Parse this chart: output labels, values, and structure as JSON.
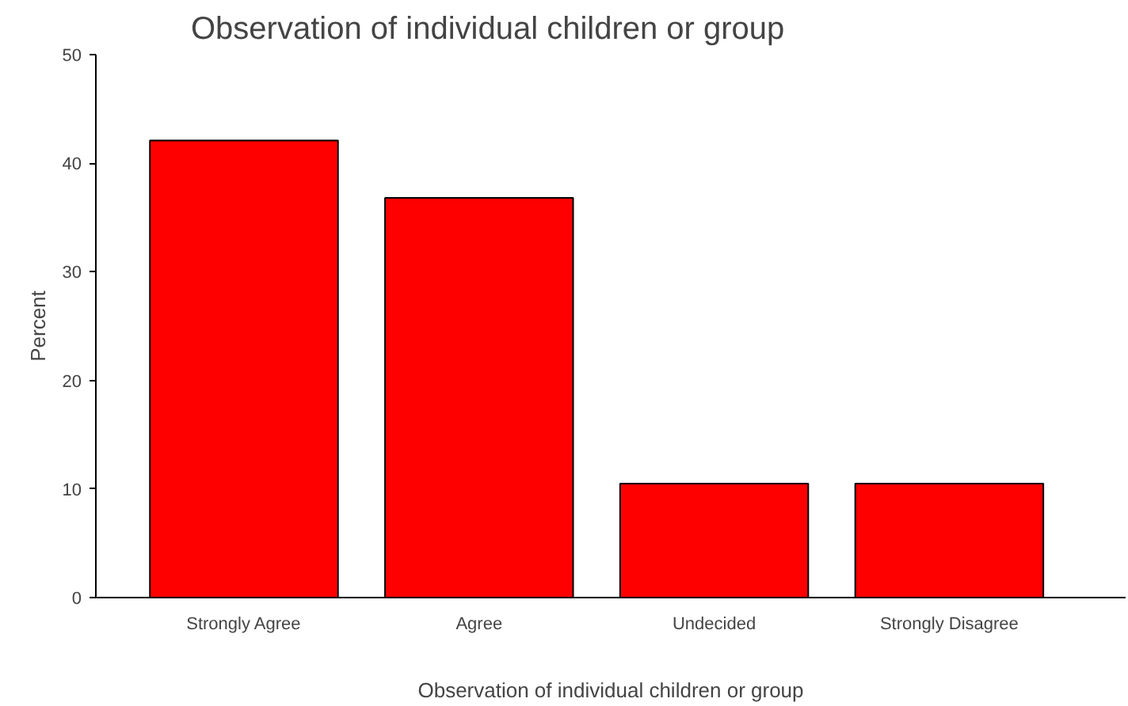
{
  "chart_data": {
    "type": "bar",
    "title": "Observation of individual children or group",
    "xlabel": "Observation of individual children or group",
    "ylabel": "Percent",
    "categories": [
      "Strongly Agree",
      "Agree",
      "Undecided",
      "Strongly Disagree"
    ],
    "values": [
      42.1,
      36.8,
      10.5,
      10.5
    ],
    "color": "#ff0000",
    "ylim": [
      0,
      50
    ],
    "yticks": [
      0,
      10,
      20,
      30,
      40,
      50
    ],
    "grid": false
  }
}
